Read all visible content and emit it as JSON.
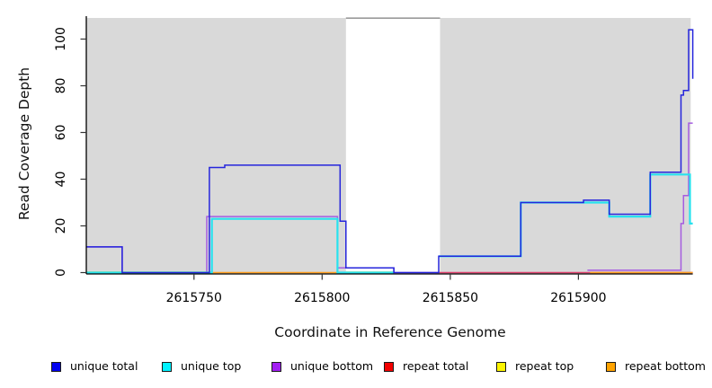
{
  "chart_data": {
    "type": "line",
    "subtype": "step-coverage",
    "title": "",
    "xlabel": "Coordinate in Reference Genome",
    "ylabel": "Read Coverage Depth",
    "xlim": [
      2615708,
      2615944.6
    ],
    "ylim": [
      0,
      111
    ],
    "x_ticks": [
      2615750,
      2615800,
      2615850,
      2615900
    ],
    "y_ticks": [
      0,
      20,
      40,
      60,
      80,
      100
    ],
    "grid": false,
    "legend_position": "bottom",
    "plot_background": {
      "shaded_color": "#d9d9d9",
      "shaded_regions": [
        [
          2615708,
          2615809.3
        ],
        [
          2615846,
          2615943.8
        ]
      ],
      "gap_cap": {
        "from": 2615809.3,
        "to": 2615846,
        "color": "#9a9a9a"
      }
    },
    "series": [
      {
        "name": "repeat top",
        "color": "#f0e53a",
        "lw": 2.4,
        "segments": [
          [
            [
              2615708,
              0
            ],
            [
              2615756,
              0
            ]
          ],
          [
            [
              2615809.3,
              0
            ],
            [
              2615828,
              0
            ]
          ]
        ]
      },
      {
        "name": "repeat total",
        "color": "#e0416e",
        "lw": 1.4,
        "segments": [
          [
            [
              2615845.5,
              0
            ],
            [
              2615944.6,
              0
            ]
          ]
        ]
      },
      {
        "name": "repeat bottom",
        "color": "#ff9f1f",
        "lw": 1.6,
        "segments": [
          [
            [
              2615756,
              0
            ],
            [
              2615808,
              0
            ]
          ],
          [
            [
              2615904.5,
              0
            ],
            [
              2615944.6,
              0
            ]
          ]
        ]
      },
      {
        "name": "unique bottom",
        "color": "#a55ce0",
        "lw": 1.5,
        "segments": [
          [
            [
              2615708,
              11
            ],
            [
              2615722,
              0
            ],
            [
              2615755,
              24
            ],
            [
              2615806,
              2
            ],
            [
              2615828,
              0
            ],
            [
              2615845.5,
              0
            ]
          ],
          [
            [
              2615903.5,
              1
            ],
            [
              2615940,
              21
            ],
            [
              2615941,
              33
            ],
            [
              2615943,
              64
            ],
            [
              2615944.6,
              64
            ]
          ]
        ]
      },
      {
        "name": "unique top",
        "color": "#28e2ee",
        "lw": 2.2,
        "segments": [
          [
            [
              2615708,
              0
            ],
            [
              2615757,
              23
            ],
            [
              2615806,
              0
            ],
            [
              2615828,
              0
            ]
          ],
          [
            [
              2615845.5,
              7
            ],
            [
              2615877.5,
              30
            ],
            [
              2615912,
              24
            ],
            [
              2615928,
              42
            ],
            [
              2615943.5,
              21
            ],
            [
              2615944.6,
              21
            ]
          ]
        ]
      },
      {
        "name": "unique total",
        "color": "#2525dc",
        "lw": 1.5,
        "segments": [
          [
            [
              2615708,
              11
            ],
            [
              2615722,
              0
            ],
            [
              2615756,
              45
            ],
            [
              2615762,
              46
            ],
            [
              2615807,
              22
            ],
            [
              2615809.3,
              2
            ],
            [
              2615828,
              0
            ],
            [
              2615845.5,
              7
            ],
            [
              2615877.5,
              30
            ],
            [
              2615902,
              31
            ],
            [
              2615912,
              25
            ],
            [
              2615928,
              43
            ],
            [
              2615940,
              76
            ],
            [
              2615941,
              78
            ],
            [
              2615943,
              104
            ],
            [
              2615944.6,
              83
            ]
          ]
        ]
      }
    ],
    "legend": {
      "items": [
        {
          "label": "unique total",
          "color": "#0202f0"
        },
        {
          "label": "unique top",
          "color": "#00f2ff"
        },
        {
          "label": "unique bottom",
          "color": "#a21ff2"
        },
        {
          "label": "repeat total",
          "color": "#f20000"
        },
        {
          "label": "repeat top",
          "color": "#fcf400"
        },
        {
          "label": "repeat bottom",
          "color": "#ffa300"
        }
      ]
    }
  }
}
